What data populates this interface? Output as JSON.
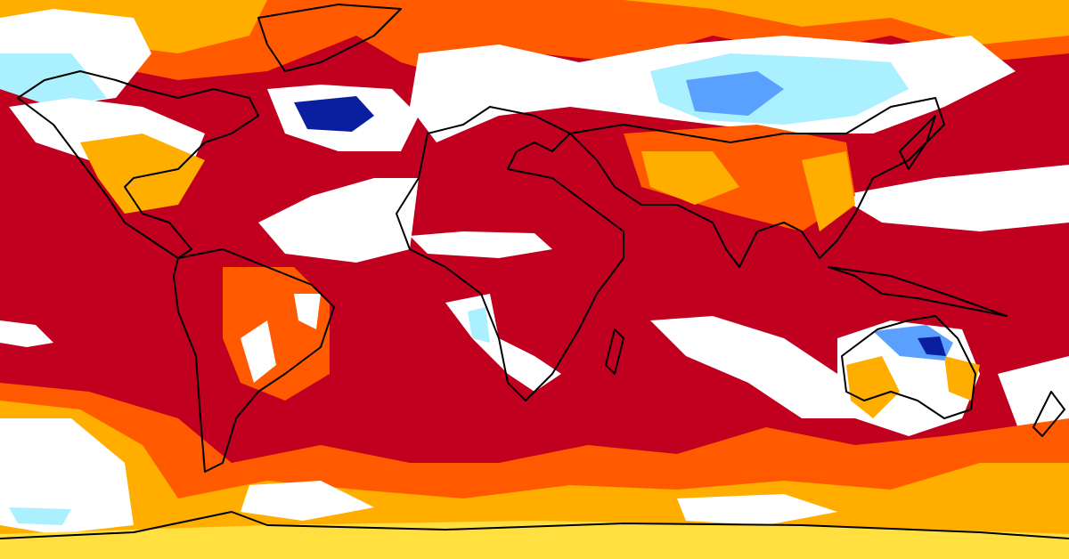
{
  "map": {
    "projection": "equirectangular",
    "colors": {
      "much_above": "#c1001f",
      "above": "#ff5a00",
      "slightly_above": "#ffae00",
      "mild": "#ffe040",
      "near_normal": "#ffffff",
      "slightly_below": "#aaf0ff",
      "below": "#5aa0ff",
      "much_below": "#0a1ea0",
      "coastline": "#000000"
    }
  }
}
